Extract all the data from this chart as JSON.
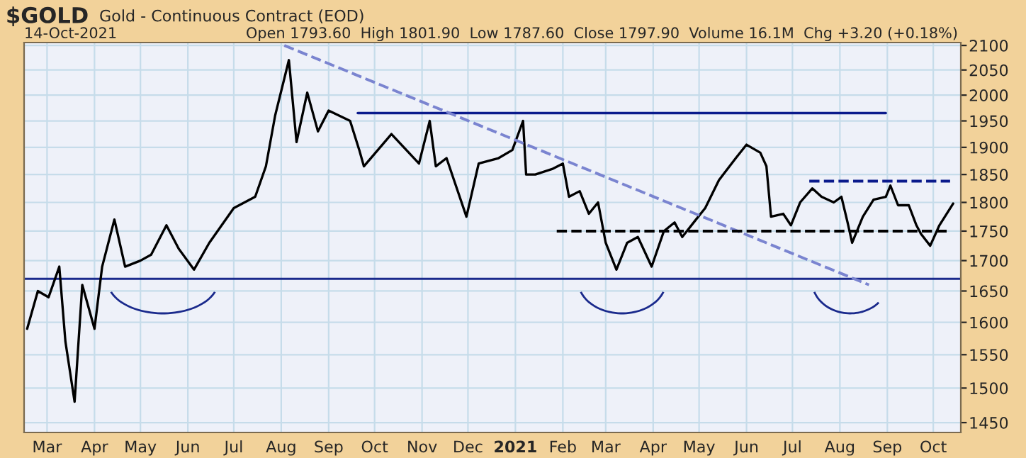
{
  "chart_data": {
    "type": "line",
    "title": "$GOLD",
    "subtitle": "Gold - Continuous Contract (EOD)",
    "annotations": [
      "14-Oct-2021",
      "Open 1793.60  High 1801.90  Low 1787.60  Close 1797.90  Volume 16.1M  Chg +3.20 (+0.18%)"
    ],
    "log": "y",
    "grid": true,
    "legend": false,
    "xlim": [
      "2020-02-15",
      "2021-10-19"
    ],
    "xticks": [
      {
        "value": "2020-03-01",
        "label": "Mar"
      },
      {
        "value": "2020-04-01",
        "label": "Apr"
      },
      {
        "value": "2020-05-01",
        "label": "May"
      },
      {
        "value": "2020-06-01",
        "label": "Jun"
      },
      {
        "value": "2020-07-01",
        "label": "Jul"
      },
      {
        "value": "2020-08-01",
        "label": "Aug"
      },
      {
        "value": "2020-09-01",
        "label": "Sep"
      },
      {
        "value": "2020-10-01",
        "label": "Oct"
      },
      {
        "value": "2020-11-01",
        "label": "Nov"
      },
      {
        "value": "2020-12-01",
        "label": "Dec"
      },
      {
        "value": "2021-01-01",
        "label": "2021"
      },
      {
        "value": "2021-02-01",
        "label": "Feb"
      },
      {
        "value": "2021-03-01",
        "label": "Mar"
      },
      {
        "value": "2021-04-01",
        "label": "Apr"
      },
      {
        "value": "2021-05-01",
        "label": "May"
      },
      {
        "value": "2021-06-01",
        "label": "Jun"
      },
      {
        "value": "2021-07-01",
        "label": "Jul"
      },
      {
        "value": "2021-08-01",
        "label": "Aug"
      },
      {
        "value": "2021-09-01",
        "label": "Sep"
      },
      {
        "value": "2021-10-01",
        "label": "Oct"
      }
    ],
    "ylim": [
      1436,
      2106
    ],
    "yticks": [
      1450,
      1500,
      1550,
      1600,
      1650,
      1700,
      1750,
      1800,
      1850,
      1900,
      1950,
      2000,
      2050,
      2100
    ],
    "ref_lines": [
      {
        "axis": "y",
        "value": 1670,
        "color": "#1a2a8c",
        "line_style": "solid"
      }
    ],
    "series": [
      {
        "color": "#000000",
        "line_style": "solid",
        "x": [
          "2020-02-17",
          "2020-02-24",
          "2020-03-02",
          "2020-03-09",
          "2020-03-13",
          "2020-03-19",
          "2020-03-24",
          "2020-04-01",
          "2020-04-06",
          "2020-04-14",
          "2020-04-21",
          "2020-05-01",
          "2020-05-08",
          "2020-05-18",
          "2020-05-26",
          "2020-06-05",
          "2020-06-15",
          "2020-07-01",
          "2020-07-15",
          "2020-07-22",
          "2020-07-28",
          "2020-08-06",
          "2020-08-11",
          "2020-08-18",
          "2020-08-25",
          "2020-09-01",
          "2020-09-15",
          "2020-09-21",
          "2020-09-24",
          "2020-10-12",
          "2020-10-30",
          "2020-11-06",
          "2020-11-10",
          "2020-11-17",
          "2020-11-30",
          "2020-12-08",
          "2020-12-21",
          "2020-12-30",
          "2021-01-06",
          "2021-01-08",
          "2021-01-14",
          "2021-01-25",
          "2021-02-01",
          "2021-02-05",
          "2021-02-12",
          "2021-02-18",
          "2021-02-24",
          "2021-03-01",
          "2021-03-08",
          "2021-03-15",
          "2021-03-22",
          "2021-03-31",
          "2021-04-08",
          "2021-04-15",
          "2021-04-20",
          "2021-04-29",
          "2021-05-05",
          "2021-05-14",
          "2021-05-25",
          "2021-06-01",
          "2021-06-10",
          "2021-06-14",
          "2021-06-17",
          "2021-06-25",
          "2021-06-30",
          "2021-07-06",
          "2021-07-14",
          "2021-07-20",
          "2021-07-28",
          "2021-08-02",
          "2021-08-06",
          "2021-08-09",
          "2021-08-16",
          "2021-08-23",
          "2021-08-31",
          "2021-09-03",
          "2021-09-08",
          "2021-09-15",
          "2021-09-20",
          "2021-09-23",
          "2021-09-29",
          "2021-10-05",
          "2021-10-14"
        ],
        "values": [
          1590,
          1650,
          1640,
          1690,
          1570,
          1480,
          1660,
          1590,
          1690,
          1770,
          1690,
          1700,
          1710,
          1760,
          1720,
          1685,
          1730,
          1790,
          1810,
          1865,
          1960,
          2070,
          1910,
          2005,
          1930,
          1970,
          1950,
          1895,
          1865,
          1925,
          1870,
          1950,
          1865,
          1880,
          1775,
          1870,
          1880,
          1895,
          1950,
          1850,
          1850,
          1860,
          1870,
          1810,
          1820,
          1780,
          1800,
          1730,
          1685,
          1730,
          1740,
          1690,
          1750,
          1765,
          1740,
          1770,
          1790,
          1840,
          1880,
          1905,
          1890,
          1865,
          1775,
          1780,
          1760,
          1800,
          1825,
          1810,
          1800,
          1810,
          1765,
          1730,
          1775,
          1805,
          1810,
          1830,
          1795,
          1795,
          1760,
          1745,
          1725,
          1760,
          1798
        ]
      },
      {
        "color": "#0a1a8c",
        "line_style": "solid",
        "x": [
          "2020-09-20",
          "2021-08-31"
        ],
        "values": [
          1965,
          1965
        ]
      },
      {
        "color": "#7a84d0",
        "line_style": "dashed",
        "x": [
          "2020-08-03",
          "2021-08-20"
        ],
        "values": [
          2100,
          1660
        ]
      },
      {
        "color": "#000000",
        "line_style": "dashed",
        "x": [
          "2021-01-28",
          "2021-10-12"
        ],
        "values": [
          1750,
          1750
        ]
      },
      {
        "color": "#0a1a8c",
        "line_style": "dashed",
        "x": [
          "2021-07-12",
          "2021-10-12"
        ],
        "values": [
          1838,
          1838
        ]
      }
    ]
  }
}
